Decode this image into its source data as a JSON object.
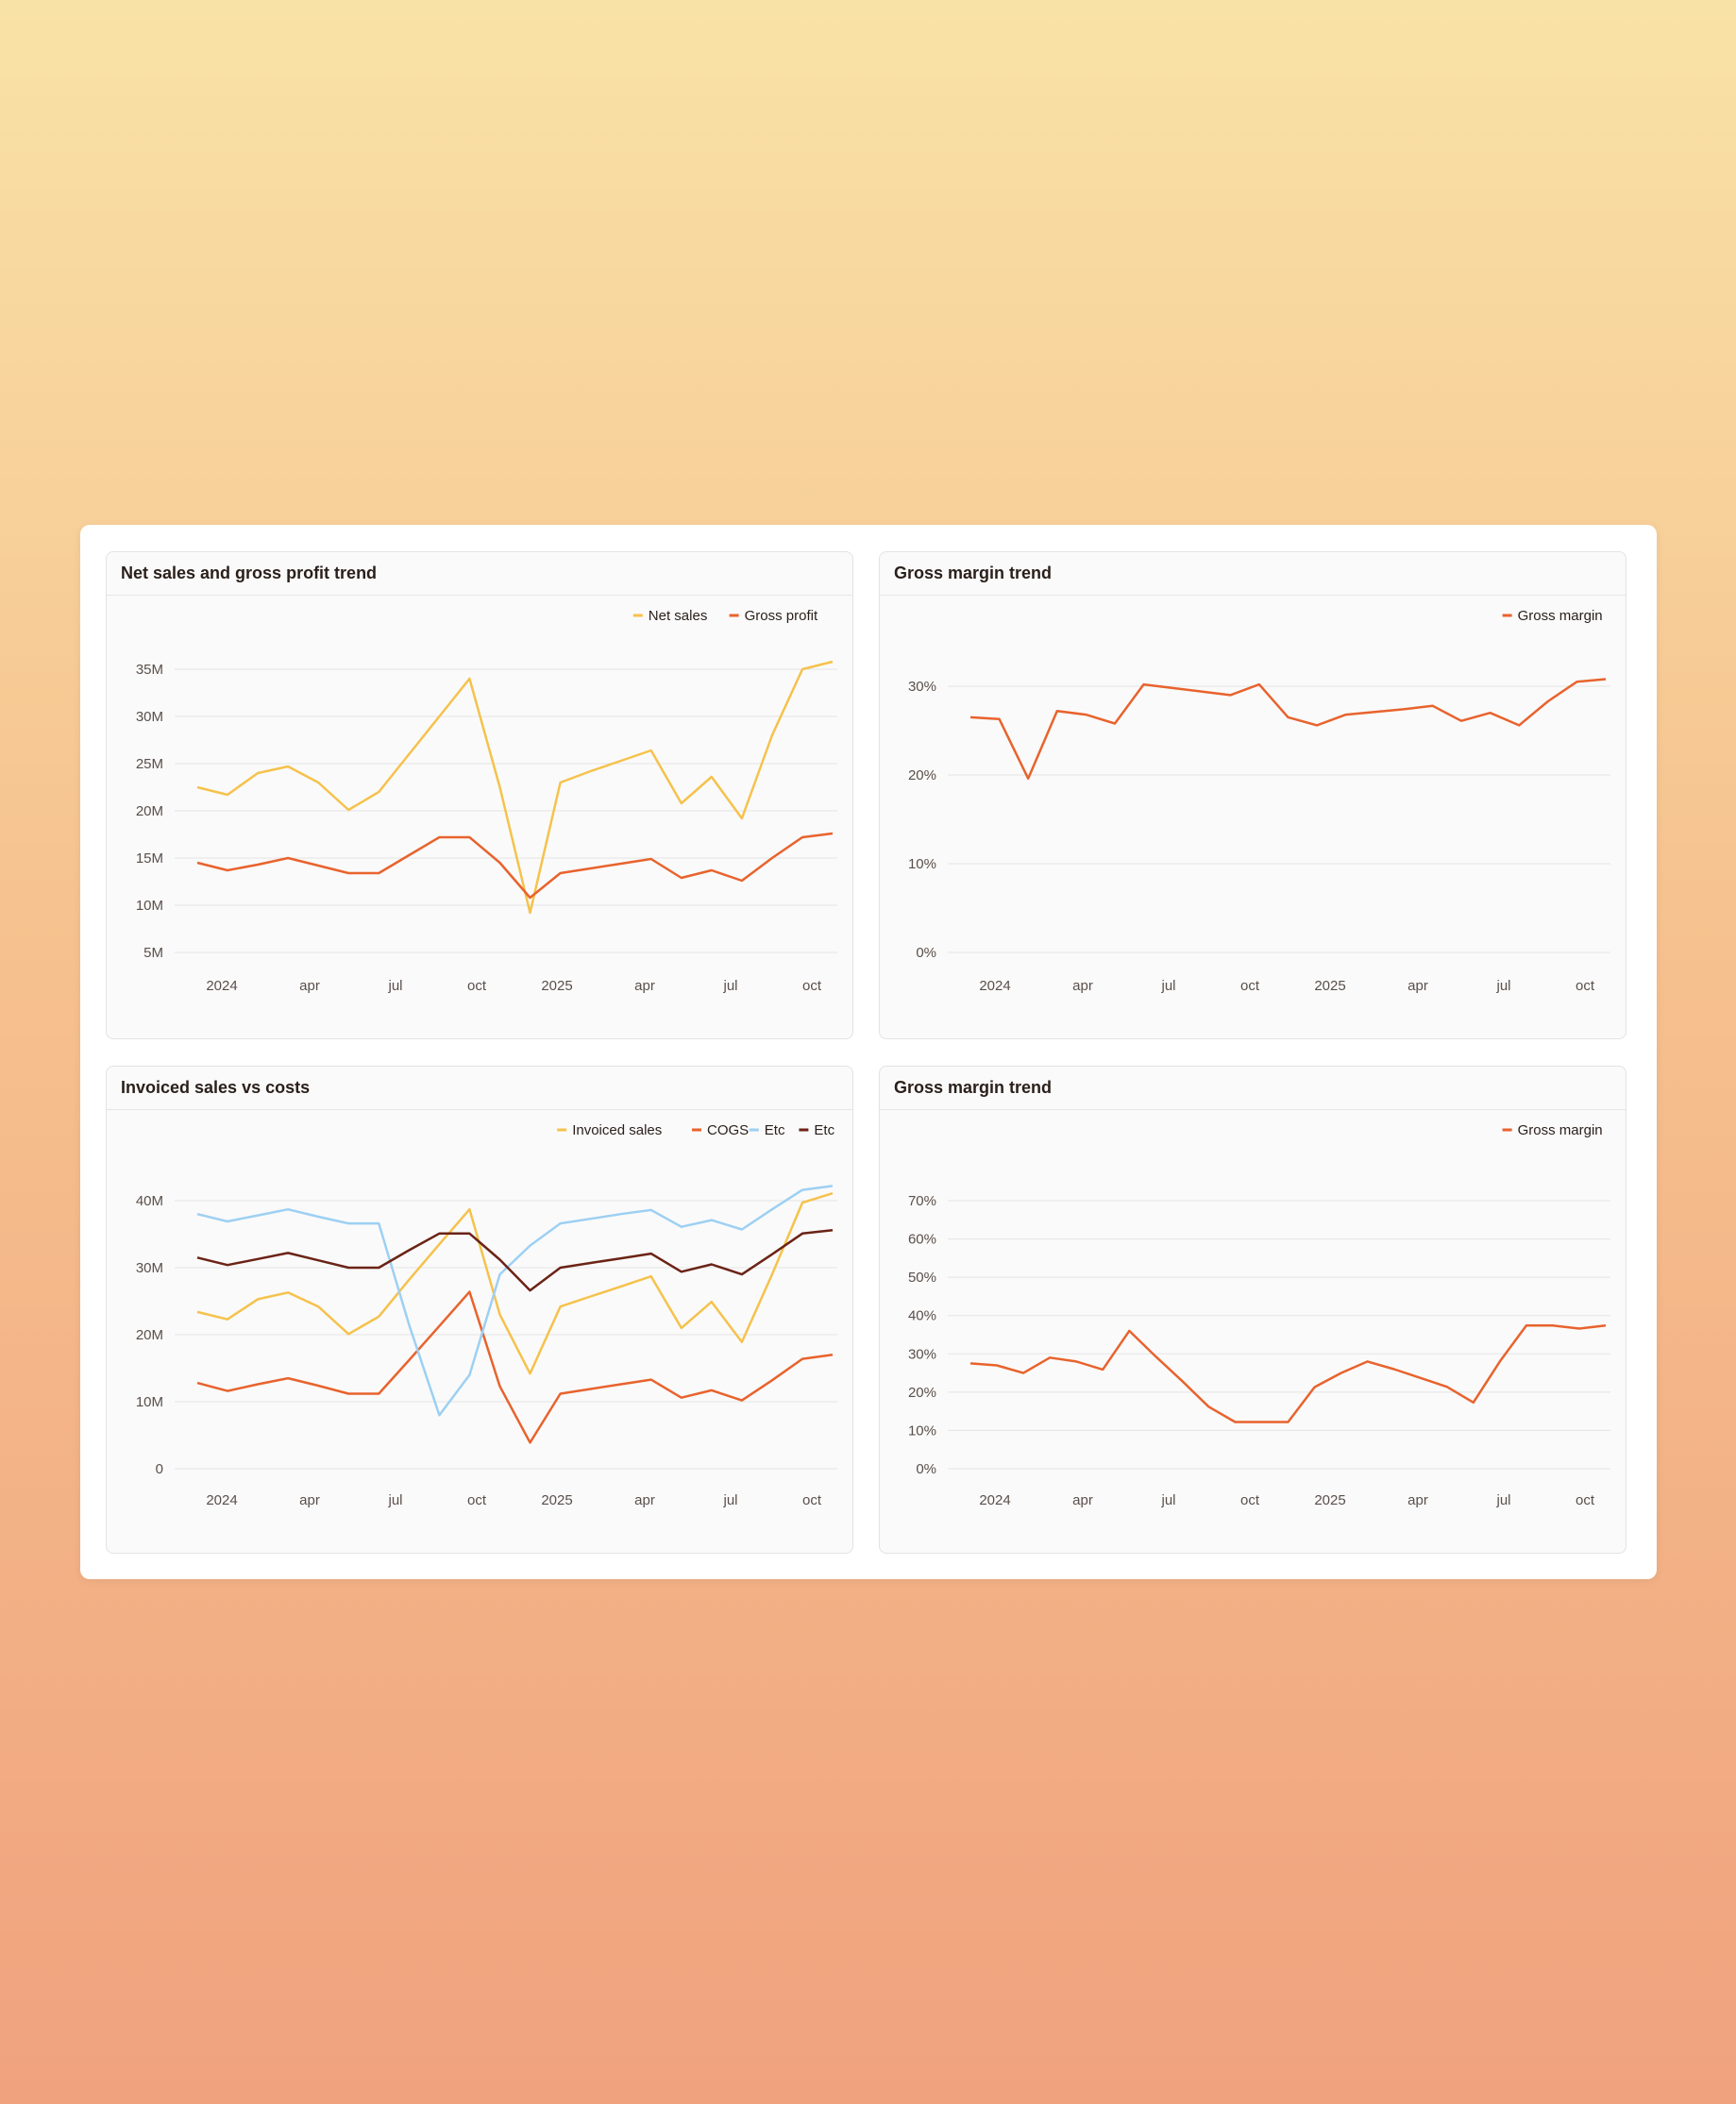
{
  "chart_data": [
    {
      "id": "c1",
      "type": "line",
      "title": "Net sales and gross profit trend",
      "x_labels": [
        "2024",
        "apr",
        "jul",
        "oct",
        "2025",
        "apr",
        "jul",
        "oct"
      ],
      "y_ticks": [
        5000000,
        10000000,
        15000000,
        20000000,
        25000000,
        30000000,
        35000000
      ],
      "y_tick_labels": [
        "5M",
        "10M",
        "15M",
        "20M",
        "25M",
        "30M",
        "35M"
      ],
      "ylim": [
        5000000,
        35000000
      ],
      "series": [
        {
          "name": "Net sales",
          "color": "#f5c24c",
          "values": [
            22.5,
            21.7,
            24,
            24.7,
            23,
            20.1,
            22,
            26,
            30,
            34,
            22.5,
            9.2,
            23,
            24.2,
            25.3,
            26.4,
            20.8,
            23.6,
            19.2,
            28,
            35,
            35.8
          ]
        },
        {
          "name": "Gross profit",
          "color": "#e8632d",
          "values": [
            14.5,
            13.7,
            14.3,
            15,
            14.2,
            13.4,
            13.4,
            15.3,
            17.2,
            17.2,
            14.5,
            10.8,
            13.4,
            13.9,
            14.4,
            14.9,
            12.9,
            13.7,
            12.6,
            15,
            17.2,
            17.6
          ]
        }
      ]
    },
    {
      "id": "c2",
      "type": "line",
      "title": "Gross margin trend",
      "x_labels": [
        "2024",
        "apr",
        "jul",
        "oct",
        "2025",
        "apr",
        "jul",
        "oct"
      ],
      "y_ticks": [
        0,
        10,
        20,
        30
      ],
      "y_tick_labels": [
        "0%",
        "10%",
        "20%",
        "30%"
      ],
      "ylim": [
        0,
        30
      ],
      "series": [
        {
          "name": "Gross margin",
          "color": "#e8632d",
          "values": [
            26.5,
            26.3,
            19.6,
            27.2,
            26.8,
            25.8,
            30.2,
            29.8,
            29.4,
            29,
            30.2,
            26.5,
            25.6,
            26.8,
            27.1,
            27.4,
            27.8,
            26.1,
            27,
            25.6,
            28.3,
            30.5,
            30.8
          ]
        }
      ]
    },
    {
      "id": "c3",
      "type": "line",
      "title": "Invoiced sales vs costs",
      "x_labels": [
        "2024",
        "apr",
        "jul",
        "oct",
        "2025",
        "apr",
        "jul",
        "oct"
      ],
      "y_ticks": [
        0,
        10000000,
        20000000,
        30000000,
        40000000
      ],
      "y_tick_labels": [
        "0",
        "10M",
        "20M",
        "30M",
        "40M"
      ],
      "ylim": [
        0,
        40000000
      ],
      "series": [
        {
          "name": "Invoiced sales",
          "color": "#f5c24c",
          "values": [
            23.4,
            22.3,
            25.3,
            26.3,
            24.2,
            20.1,
            22.7,
            28.2,
            33.5,
            38.7,
            23,
            14.2,
            24.2,
            25.7,
            27.2,
            28.7,
            21,
            24.9,
            18.9,
            29,
            39.7,
            41.1
          ]
        },
        {
          "name": "COGS",
          "color": "#e8632d",
          "values": [
            12.8,
            11.6,
            12.6,
            13.5,
            12.4,
            11.2,
            11.2,
            16.2,
            21.3,
            26.4,
            12.3,
            3.9,
            11.2,
            11.9,
            12.6,
            13.3,
            10.6,
            11.7,
            10.2,
            13.2,
            16.4,
            17
          ]
        },
        {
          "name": "Etc",
          "color": "#9dd0f3",
          "values": [
            38,
            36.9,
            37.8,
            38.7,
            37.6,
            36.6,
            36.6,
            21.5,
            8,
            14,
            29,
            33.3,
            36.6,
            37.3,
            38,
            38.6,
            36.1,
            37.1,
            35.7,
            38.7,
            41.6,
            42.2
          ]
        },
        {
          "name": "Etc",
          "color": "#6b2316",
          "values": [
            31.5,
            30.4,
            31.3,
            32.2,
            31.1,
            30,
            30,
            32.6,
            35.1,
            35.1,
            31.2,
            26.6,
            30,
            30.7,
            31.4,
            32.1,
            29.4,
            30.5,
            29,
            32,
            35.1,
            35.6
          ]
        }
      ]
    },
    {
      "id": "c4",
      "type": "line",
      "title": "Gross margin trend",
      "x_labels": [
        "2024",
        "apr",
        "jul",
        "oct",
        "2025",
        "apr",
        "jul",
        "oct"
      ],
      "y_ticks": [
        0,
        10,
        20,
        30,
        40,
        50,
        60,
        70
      ],
      "y_tick_labels": [
        "0%",
        "10%",
        "20%",
        "30%",
        "40%",
        "50%",
        "60%",
        "70%"
      ],
      "ylim": [
        0,
        70
      ],
      "series": [
        {
          "name": "Gross margin",
          "color": "#e8632d",
          "values": [
            27.5,
            27,
            25,
            29,
            28,
            25.9,
            36,
            29.3,
            22.9,
            16.2,
            12.2,
            12.2,
            12.2,
            21.3,
            25,
            28,
            26,
            23.7,
            21.4,
            17.3,
            28,
            37.4,
            37.4,
            36.6,
            37.4
          ]
        }
      ]
    }
  ]
}
